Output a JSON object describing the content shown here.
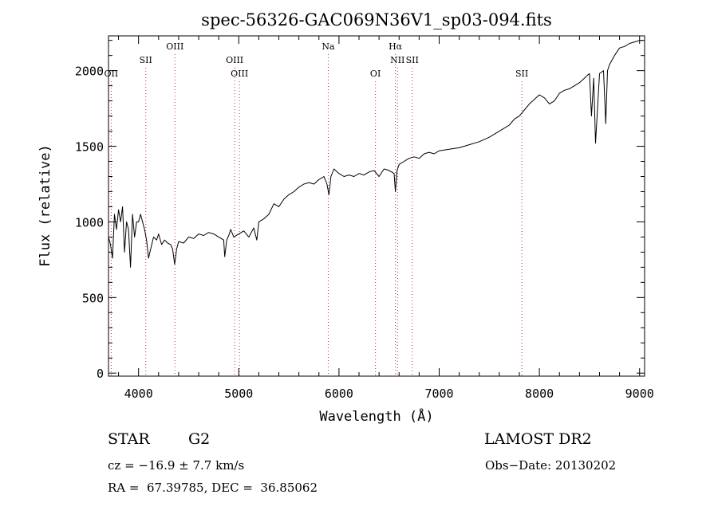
{
  "chart_data": {
    "type": "line",
    "title": "spec-56326-GAC069N36V1_sp03-094.fits",
    "xlabel": "Wavelength (Å)",
    "ylabel": "Flux (relative)",
    "xlim": [
      3700,
      9050
    ],
    "ylim": [
      -20,
      2230
    ],
    "xticks": [
      4000,
      5000,
      6000,
      7000,
      8000,
      9000
    ],
    "yticks": [
      0,
      500,
      1000,
      1500,
      2000
    ],
    "grid": false,
    "series": [
      {
        "x": [
          3700,
          3720,
          3740,
          3760,
          3780,
          3800,
          3820,
          3840,
          3860,
          3880,
          3900,
          3920,
          3940,
          3960,
          3980,
          4000,
          4020,
          4040,
          4060,
          4080,
          4100,
          4120,
          4150,
          4180,
          4200,
          4230,
          4260,
          4290,
          4320,
          4340,
          4360,
          4380,
          4400,
          4450,
          4500,
          4550,
          4600,
          4650,
          4700,
          4750,
          4800,
          4850,
          4860,
          4880,
          4900,
          4920,
          4950,
          5000,
          5050,
          5100,
          5150,
          5180,
          5200,
          5250,
          5300,
          5350,
          5400,
          5450,
          5500,
          5550,
          5600,
          5650,
          5700,
          5750,
          5800,
          5850,
          5880,
          5900,
          5920,
          5950,
          6000,
          6050,
          6100,
          6150,
          6200,
          6250,
          6300,
          6350,
          6400,
          6450,
          6500,
          6550,
          6563,
          6580,
          6600,
          6650,
          6700,
          6750,
          6800,
          6850,
          6900,
          6950,
          7000,
          7100,
          7200,
          7300,
          7400,
          7500,
          7600,
          7700,
          7750,
          7800,
          7850,
          7900,
          7950,
          8000,
          8050,
          8100,
          8150,
          8200,
          8250,
          8300,
          8350,
          8400,
          8450,
          8480,
          8500,
          8520,
          8542,
          8560,
          8600,
          8640,
          8662,
          8680,
          8700,
          8750,
          8800,
          8850,
          8900,
          8950,
          9000,
          9030
        ],
        "values": [
          900,
          850,
          760,
          1050,
          950,
          1080,
          1000,
          1100,
          800,
          1000,
          950,
          700,
          1050,
          900,
          1000,
          1000,
          1050,
          1000,
          950,
          880,
          760,
          820,
          900,
          880,
          920,
          850,
          880,
          860,
          850,
          820,
          720,
          820,
          870,
          860,
          900,
          890,
          920,
          910,
          930,
          920,
          900,
          880,
          770,
          880,
          910,
          950,
          900,
          920,
          940,
          900,
          960,
          880,
          1000,
          1020,
          1050,
          1120,
          1100,
          1150,
          1180,
          1200,
          1230,
          1250,
          1260,
          1250,
          1280,
          1300,
          1250,
          1180,
          1300,
          1350,
          1320,
          1300,
          1310,
          1300,
          1320,
          1310,
          1330,
          1340,
          1300,
          1350,
          1340,
          1320,
          1200,
          1340,
          1380,
          1400,
          1420,
          1430,
          1420,
          1450,
          1460,
          1450,
          1470,
          1480,
          1490,
          1510,
          1530,
          1560,
          1600,
          1640,
          1680,
          1700,
          1740,
          1780,
          1810,
          1840,
          1820,
          1780,
          1800,
          1850,
          1870,
          1880,
          1900,
          1920,
          1950,
          1970,
          1980,
          1700,
          1950,
          1520,
          1980,
          2000,
          1650,
          2000,
          2040,
          2100,
          2150,
          2160,
          2180,
          2190,
          2200,
          2200
        ]
      }
    ],
    "line_markers": [
      {
        "name": "OII",
        "wavelength": 3727,
        "row": 2
      },
      {
        "name": "SII",
        "wavelength": 4072,
        "row": 1
      },
      {
        "name": "OIII",
        "wavelength": 4363,
        "row": 0
      },
      {
        "name": "OIII",
        "wavelength": 4959,
        "row": 1
      },
      {
        "name": "OIII",
        "wavelength": 5007,
        "row": 2
      },
      {
        "name": "Na",
        "wavelength": 5893,
        "row": 0
      },
      {
        "name": "OI",
        "wavelength": 6364,
        "row": 2
      },
      {
        "name": "Hα",
        "wavelength": 6563,
        "row": 0
      },
      {
        "name": "NII",
        "wavelength": 6584,
        "row": 1
      },
      {
        "name": "SII",
        "wavelength": 6731,
        "row": 1
      },
      {
        "name": "SII",
        "wavelength": 7825,
        "row": 2
      }
    ]
  },
  "info": {
    "class": "STAR",
    "subclass": "G2",
    "survey": "LAMOST DR2",
    "cz": "cz = −16.9 ± 7.7 km/s",
    "obs_date": "Obs−Date: 20130202",
    "radec": "RA =  67.39785, DEC =  36.85062"
  }
}
